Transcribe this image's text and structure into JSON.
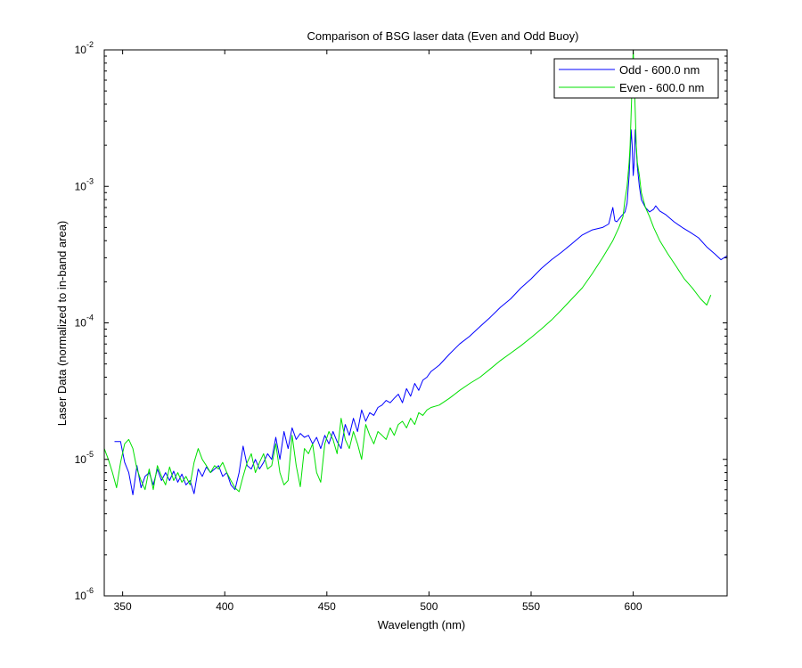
{
  "chart_data": {
    "type": "line",
    "title": "Comparison of BSG laser data (Even and Odd Buoy)",
    "xlabel": "Wavelength (nm)",
    "ylabel": "Laser Data (normalized to in-band area)",
    "xlim": [
      341,
      646
    ],
    "ylim": [
      1e-06,
      0.01
    ],
    "yscale": "log",
    "x_ticks": [
      350,
      400,
      450,
      500,
      550,
      600
    ],
    "y_ticks": [
      {
        "base": "10",
        "exp": "-6"
      },
      {
        "base": "10",
        "exp": "-5"
      },
      {
        "base": "10",
        "exp": "-4"
      },
      {
        "base": "10",
        "exp": "-3"
      },
      {
        "base": "10",
        "exp": "-2"
      }
    ],
    "legend_position": "top-right",
    "grid": false,
    "series": [
      {
        "name": "Odd - 600.0 nm",
        "color": "#0000ff",
        "x": [
          346,
          349,
          351,
          353,
          355,
          357,
          359,
          361,
          363,
          365,
          367,
          369,
          371,
          373,
          375,
          377,
          379,
          381,
          383,
          385,
          387,
          389,
          391,
          393,
          395,
          397,
          399,
          401,
          403,
          405,
          407,
          409,
          411,
          413,
          415,
          417,
          419,
          421,
          423,
          425,
          427,
          429,
          431,
          433,
          435,
          437,
          439,
          441,
          443,
          445,
          447,
          449,
          451,
          453,
          455,
          457,
          459,
          461,
          463,
          465,
          467,
          469,
          471,
          473,
          475,
          477,
          479,
          481,
          483,
          485,
          487,
          489,
          491,
          493,
          495,
          497,
          499,
          501,
          505,
          510,
          515,
          520,
          525,
          530,
          535,
          540,
          545,
          550,
          555,
          560,
          565,
          570,
          575,
          580,
          585,
          588,
          590,
          591,
          592,
          594,
          596,
          597,
          598,
          599,
          599.5,
          600,
          600.5,
          601,
          602,
          603,
          604,
          606,
          608,
          610,
          611,
          613,
          616,
          620,
          624,
          628,
          632,
          636,
          640,
          643,
          646
        ],
        "y": [
          1.35e-05,
          1.35e-05,
          9.5e-06,
          8e-06,
          5.5e-06,
          9e-06,
          6.2e-06,
          7.5e-06,
          8e-06,
          6.5e-06,
          8.5e-06,
          7e-06,
          8e-06,
          7e-06,
          8.2e-06,
          6.8e-06,
          7.8e-06,
          6.5e-06,
          7e-06,
          5.6e-06,
          8.5e-06,
          7.5e-06,
          8.8e-06,
          8e-06,
          8.5e-06,
          9e-06,
          7.5e-06,
          8e-06,
          6.5e-06,
          6e-06,
          8e-06,
          1.25e-05,
          9e-06,
          8.5e-06,
          1e-05,
          8.5e-06,
          9.5e-06,
          1.1e-05,
          1e-05,
          1.45e-05,
          1e-05,
          1.6e-05,
          1.2e-05,
          1.7e-05,
          1.4e-05,
          1.55e-05,
          1.45e-05,
          1.5e-05,
          1.3e-05,
          1.45e-05,
          1.2e-05,
          1.5e-05,
          1.3e-05,
          1.6e-05,
          1.35e-05,
          1.2e-05,
          1.8e-05,
          1.5e-05,
          2e-05,
          1.6e-05,
          2.3e-05,
          1.9e-05,
          2.2e-05,
          2.1e-05,
          2.4e-05,
          2.5e-05,
          2.7e-05,
          2.6e-05,
          2.8e-05,
          3e-05,
          2.6e-05,
          3.3e-05,
          2.9e-05,
          3.6e-05,
          3.2e-05,
          3.8e-05,
          4e-05,
          4.4e-05,
          4.9e-05,
          5.9e-05,
          7e-05,
          8e-05,
          9.4e-05,
          0.00011,
          0.00013,
          0.00015,
          0.00018,
          0.00021,
          0.00025,
          0.00029,
          0.00033,
          0.00038,
          0.00044,
          0.00048,
          0.0005,
          0.00053,
          0.0007,
          0.00056,
          0.00055,
          0.0006,
          0.00065,
          0.00075,
          0.0012,
          0.0026,
          0.002,
          0.0012,
          0.0015,
          0.0026,
          0.0014,
          0.001,
          0.0008,
          0.0007,
          0.00065,
          0.00068,
          0.00072,
          0.00066,
          0.00062,
          0.00055,
          0.0005,
          0.00046,
          0.00042,
          0.00036,
          0.00032,
          0.00029,
          0.00031
        ]
      },
      {
        "name": "Even - 600.0 nm",
        "color": "#00e000",
        "x": [
          341,
          343,
          345,
          347,
          349,
          351,
          353,
          355,
          357,
          359,
          361,
          363,
          365,
          367,
          369,
          371,
          373,
          375,
          377,
          379,
          381,
          383,
          385,
          387,
          389,
          391,
          393,
          395,
          397,
          399,
          401,
          403,
          405,
          407,
          409,
          411,
          413,
          415,
          417,
          419,
          421,
          423,
          425,
          427,
          429,
          431,
          433,
          435,
          437,
          439,
          441,
          443,
          445,
          447,
          449,
          451,
          453,
          455,
          457,
          459,
          461,
          463,
          465,
          467,
          469,
          471,
          473,
          475,
          477,
          479,
          481,
          483,
          485,
          487,
          489,
          491,
          493,
          495,
          497,
          499,
          501,
          505,
          510,
          515,
          520,
          525,
          530,
          535,
          540,
          545,
          550,
          555,
          560,
          565,
          570,
          575,
          580,
          585,
          590,
          593,
          595,
          596,
          597,
          598,
          598.5,
          599,
          600,
          601,
          601.5,
          602,
          603,
          604,
          606,
          608,
          610,
          613,
          617,
          621,
          625,
          629,
          633,
          636,
          638
        ],
        "y": [
          1.2e-05,
          1e-05,
          8e-06,
          6.2e-06,
          9.5e-06,
          1.3e-05,
          1.4e-05,
          1.2e-05,
          8.5e-06,
          7e-06,
          6e-06,
          8.5e-06,
          6e-06,
          9e-06,
          7.5e-06,
          6.5e-06,
          8.8e-06,
          7e-06,
          8e-06,
          6.8e-06,
          7.5e-06,
          6.5e-06,
          9.5e-06,
          1.2e-05,
          1e-05,
          9e-06,
          8e-06,
          9e-06,
          8.5e-06,
          9.5e-06,
          8e-06,
          7e-06,
          6.2e-06,
          5.8e-06,
          7.5e-06,
          9.5e-06,
          1.1e-05,
          8e-06,
          9.5e-06,
          1.1e-05,
          8.5e-06,
          9e-06,
          1.3e-05,
          8e-06,
          6.5e-06,
          7e-06,
          1.5e-05,
          9e-06,
          6.3e-06,
          1.2e-05,
          1.1e-05,
          1.3e-05,
          8e-06,
          6.8e-06,
          1.3e-05,
          1.6e-05,
          1.4e-05,
          1.1e-05,
          2e-05,
          1.4e-05,
          1.2e-05,
          1.6e-05,
          1.3e-05,
          1e-05,
          1.8e-05,
          1.5e-05,
          1.3e-05,
          1.6e-05,
          1.5e-05,
          1.4e-05,
          1.7e-05,
          1.5e-05,
          1.8e-05,
          1.9e-05,
          1.7e-05,
          2e-05,
          1.8e-05,
          2.2e-05,
          2.1e-05,
          2.3e-05,
          2.4e-05,
          2.5e-05,
          2.8e-05,
          3.2e-05,
          3.6e-05,
          4e-05,
          4.6e-05,
          5.3e-05,
          6e-05,
          6.8e-05,
          7.8e-05,
          9e-05,
          0.000105,
          0.000125,
          0.00015,
          0.00018,
          0.00023,
          0.0003,
          0.0004,
          0.0005,
          0.0006,
          0.0008,
          0.001,
          0.0015,
          0.002,
          0.0035,
          0.01,
          0.0035,
          0.002,
          0.0015,
          0.0012,
          0.0009,
          0.0007,
          0.0006,
          0.0005,
          0.0004,
          0.00032,
          0.00026,
          0.00021,
          0.00018,
          0.00015,
          0.000135,
          0.00016
        ]
      }
    ]
  }
}
